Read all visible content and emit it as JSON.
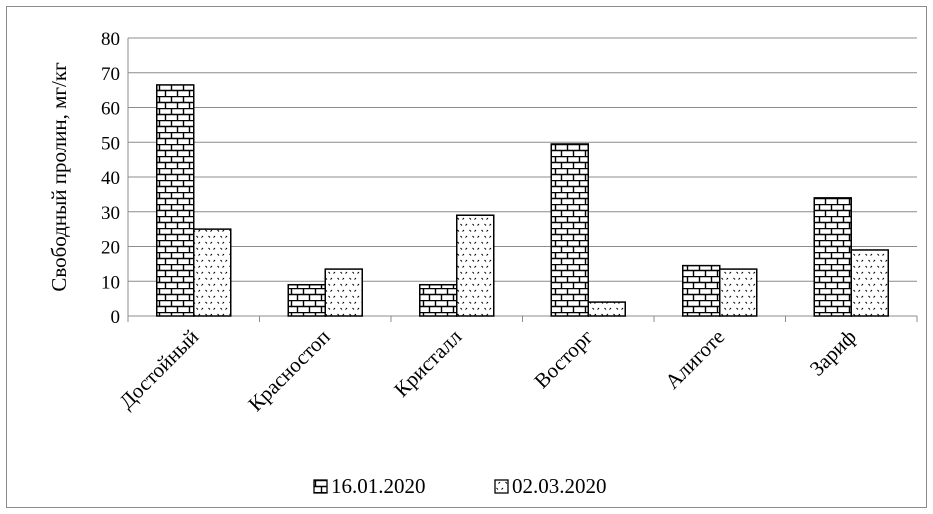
{
  "chart_data": {
    "type": "bar",
    "ylabel": "Свободный пролин, мг/кг",
    "xlabel": "",
    "ylim": [
      0,
      80
    ],
    "yticks": [
      0,
      10,
      20,
      30,
      40,
      50,
      60,
      70,
      80
    ],
    "grid": true,
    "legend_position": "bottom",
    "categories": [
      "Достойный",
      "Красностоп",
      "Кристалл",
      "Восторг",
      "Алиготе",
      "Зариф"
    ],
    "series": [
      {
        "name": "16.01.2020",
        "pattern": "brick",
        "values": [
          66.5,
          9,
          9,
          49.5,
          14.5,
          34
        ]
      },
      {
        "name": "02.03.2020",
        "pattern": "dots",
        "values": [
          25,
          13.5,
          29,
          4,
          13.5,
          19
        ]
      }
    ],
    "colors": {
      "bar_stroke": "#000000",
      "grid": "#8c8c8c",
      "frame": "#8c8c8c"
    }
  }
}
